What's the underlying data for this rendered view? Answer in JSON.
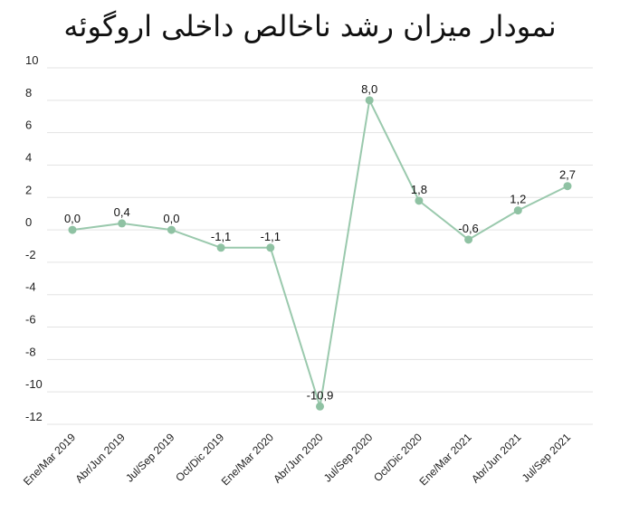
{
  "chart_data": {
    "type": "line",
    "title": "نمودار میزان رشد ناخالص داخلی اروگوئه",
    "categories": [
      "Ene/Mar 2019",
      "Abr/Jun 2019",
      "Jul/Sep 2019",
      "Oct/Dic 2019",
      "Ene/Mar 2020",
      "Abr/Jun 2020",
      "Jul/Sep 2020",
      "Oct/Dic 2020",
      "Ene/Mar 2021",
      "Abr/Jun 2021",
      "Jul/Sep 2021"
    ],
    "values": [
      0.0,
      0.4,
      0.0,
      -1.1,
      -1.1,
      -10.9,
      8.0,
      1.8,
      -0.6,
      1.2,
      2.7
    ],
    "data_labels": [
      "0,0",
      "0,4",
      "0,0",
      "-1,1",
      "-1,1",
      "-10,9",
      "8,0",
      "1,8",
      "-0,6",
      "1,2",
      "2,7"
    ],
    "ylim": [
      -12,
      10
    ],
    "yticks": [
      10,
      8,
      6,
      4,
      2,
      0,
      -2,
      -4,
      -6,
      -8,
      -10,
      -12
    ],
    "xlabel": "",
    "ylabel": "",
    "grid": true,
    "colors": {
      "line": "#9ac9ad",
      "marker": "#8fc2a3",
      "grid": "#e3e3e3"
    }
  }
}
